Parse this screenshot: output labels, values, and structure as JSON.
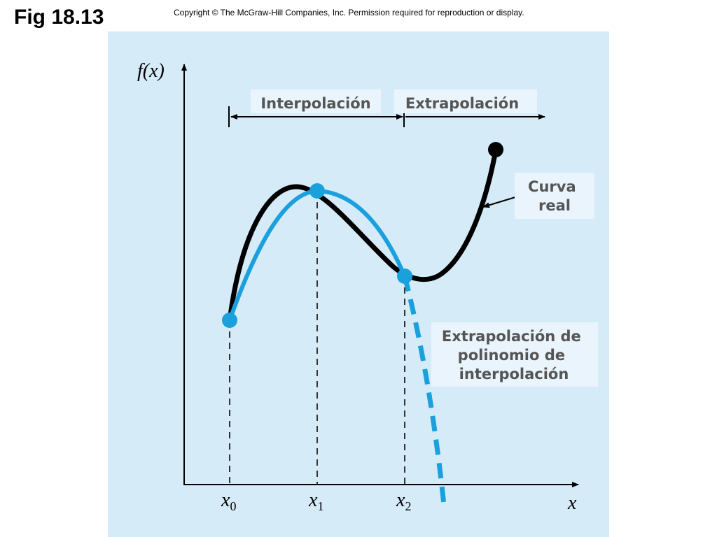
{
  "header": {
    "title": "Fig 18.13",
    "copyright": "Copyright © The McGraw-Hill Companies, Inc. Permission required for reproduction or display."
  },
  "diagram": {
    "y_axis_label": "f(x)",
    "x_axis_label": "x",
    "ticks": [
      {
        "base": "x",
        "sub": "0"
      },
      {
        "base": "x",
        "sub": "1"
      },
      {
        "base": "x",
        "sub": "2"
      }
    ],
    "interpolation_label": "Interpolación",
    "extrapolation_label": "Extrapolación",
    "true_curve_label": [
      "Curva",
      "real"
    ],
    "poly_extrapolation_label": [
      "Extrapolación de",
      "polinomio de",
      "interpolación"
    ]
  },
  "colors": {
    "panel": "#d6ebf8",
    "true_curve": "#000000",
    "interpolating_polynomial": "#1aa0dc",
    "label_box": "#eaf4fc",
    "label_text": "#555555"
  }
}
